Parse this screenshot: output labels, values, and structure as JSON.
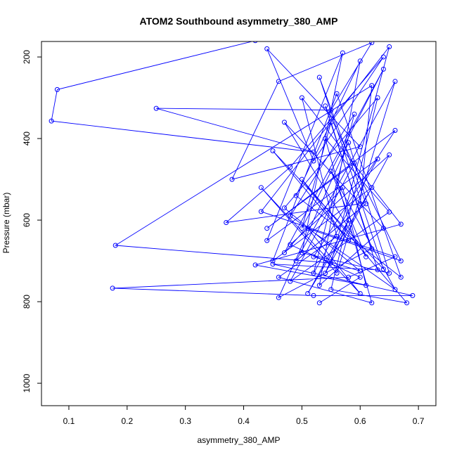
{
  "chart_data": {
    "type": "line",
    "title": "ATOM2 Southbound asymmetry_380_AMP",
    "xlabel": "asymmetry_380_AMP",
    "ylabel": "Pressure (mbar)",
    "xlim": [
      0.053,
      0.73
    ],
    "ylim": [
      1055,
      162
    ],
    "y_reversed": true,
    "x_ticks": [
      0.1,
      0.2,
      0.3,
      0.4,
      0.5,
      0.6,
      0.7
    ],
    "x_tick_labels": [
      "0.1",
      "0.2",
      "0.3",
      "0.4",
      "0.5",
      "0.6",
      "0.7"
    ],
    "y_ticks": [
      200,
      400,
      600,
      800,
      1000
    ],
    "y_tick_labels": [
      "200",
      "400",
      "600",
      "800",
      "1000"
    ],
    "grid": false,
    "marker": "open-circle",
    "series": [
      {
        "color": "#0000ff",
        "points": [
          [
            0.42,
            160
          ],
          [
            0.08,
            280
          ],
          [
            0.07,
            357
          ],
          [
            0.52,
            433
          ],
          [
            0.25,
            326
          ],
          [
            0.55,
            330
          ],
          [
            0.62,
            165
          ],
          [
            0.46,
            260
          ],
          [
            0.38,
            500
          ],
          [
            0.6,
            420
          ],
          [
            0.44,
            180
          ],
          [
            0.52,
            455
          ],
          [
            0.64,
            200
          ],
          [
            0.48,
            470
          ],
          [
            0.37,
            606
          ],
          [
            0.6,
            560
          ],
          [
            0.62,
            270
          ],
          [
            0.18,
            662
          ],
          [
            0.55,
            705
          ],
          [
            0.65,
            175
          ],
          [
            0.43,
            579
          ],
          [
            0.66,
            690
          ],
          [
            0.58,
            740
          ],
          [
            0.175,
            767
          ],
          [
            0.52,
            785
          ],
          [
            0.69,
            785
          ],
          [
            0.45,
            708
          ],
          [
            0.63,
            722
          ],
          [
            0.55,
            360
          ],
          [
            0.5,
            620
          ],
          [
            0.64,
            230
          ],
          [
            0.47,
            680
          ],
          [
            0.57,
            520
          ],
          [
            0.61,
            760
          ],
          [
            0.42,
            710
          ],
          [
            0.67,
            610
          ],
          [
            0.5,
            300
          ],
          [
            0.56,
            640
          ],
          [
            0.46,
            740
          ],
          [
            0.62,
            803
          ],
          [
            0.54,
            400
          ],
          [
            0.65,
            580
          ],
          [
            0.48,
            750
          ],
          [
            0.59,
            460
          ],
          [
            0.44,
            620
          ],
          [
            0.66,
            380
          ],
          [
            0.52,
            690
          ],
          [
            0.6,
            725
          ],
          [
            0.47,
            570
          ],
          [
            0.63,
            300
          ],
          [
            0.55,
            770
          ],
          [
            0.68,
            803
          ],
          [
            0.5,
            500
          ],
          [
            0.58,
            650
          ],
          [
            0.45,
            430
          ],
          [
            0.64,
            720
          ],
          [
            0.53,
            250
          ],
          [
            0.61,
            560
          ],
          [
            0.49,
            700
          ],
          [
            0.66,
            260
          ],
          [
            0.56,
            730
          ],
          [
            0.43,
            520
          ],
          [
            0.6,
            780
          ],
          [
            0.51,
            620
          ],
          [
            0.67,
            700
          ],
          [
            0.54,
            320
          ],
          [
            0.62,
            670
          ],
          [
            0.46,
            790
          ],
          [
            0.58,
            410
          ],
          [
            0.65,
            730
          ],
          [
            0.5,
            680
          ],
          [
            0.57,
            190
          ],
          [
            0.44,
            650
          ],
          [
            0.63,
            450
          ],
          [
            0.52,
            730
          ],
          [
            0.59,
            340
          ],
          [
            0.48,
            590
          ],
          [
            0.66,
            770
          ],
          [
            0.55,
            480
          ],
          [
            0.61,
            690
          ],
          [
            0.47,
            360
          ],
          [
            0.64,
            620
          ],
          [
            0.53,
            760
          ],
          [
            0.6,
            210
          ],
          [
            0.49,
            540
          ],
          [
            0.67,
            740
          ],
          [
            0.56,
            290
          ],
          [
            0.45,
            700
          ],
          [
            0.62,
            520
          ],
          [
            0.51,
            780
          ],
          [
            0.58,
            600
          ],
          [
            0.54,
            730
          ],
          [
            0.65,
            440
          ],
          [
            0.48,
            660
          ],
          [
            0.6,
            740
          ],
          [
            0.53,
            803
          ]
        ]
      }
    ]
  }
}
